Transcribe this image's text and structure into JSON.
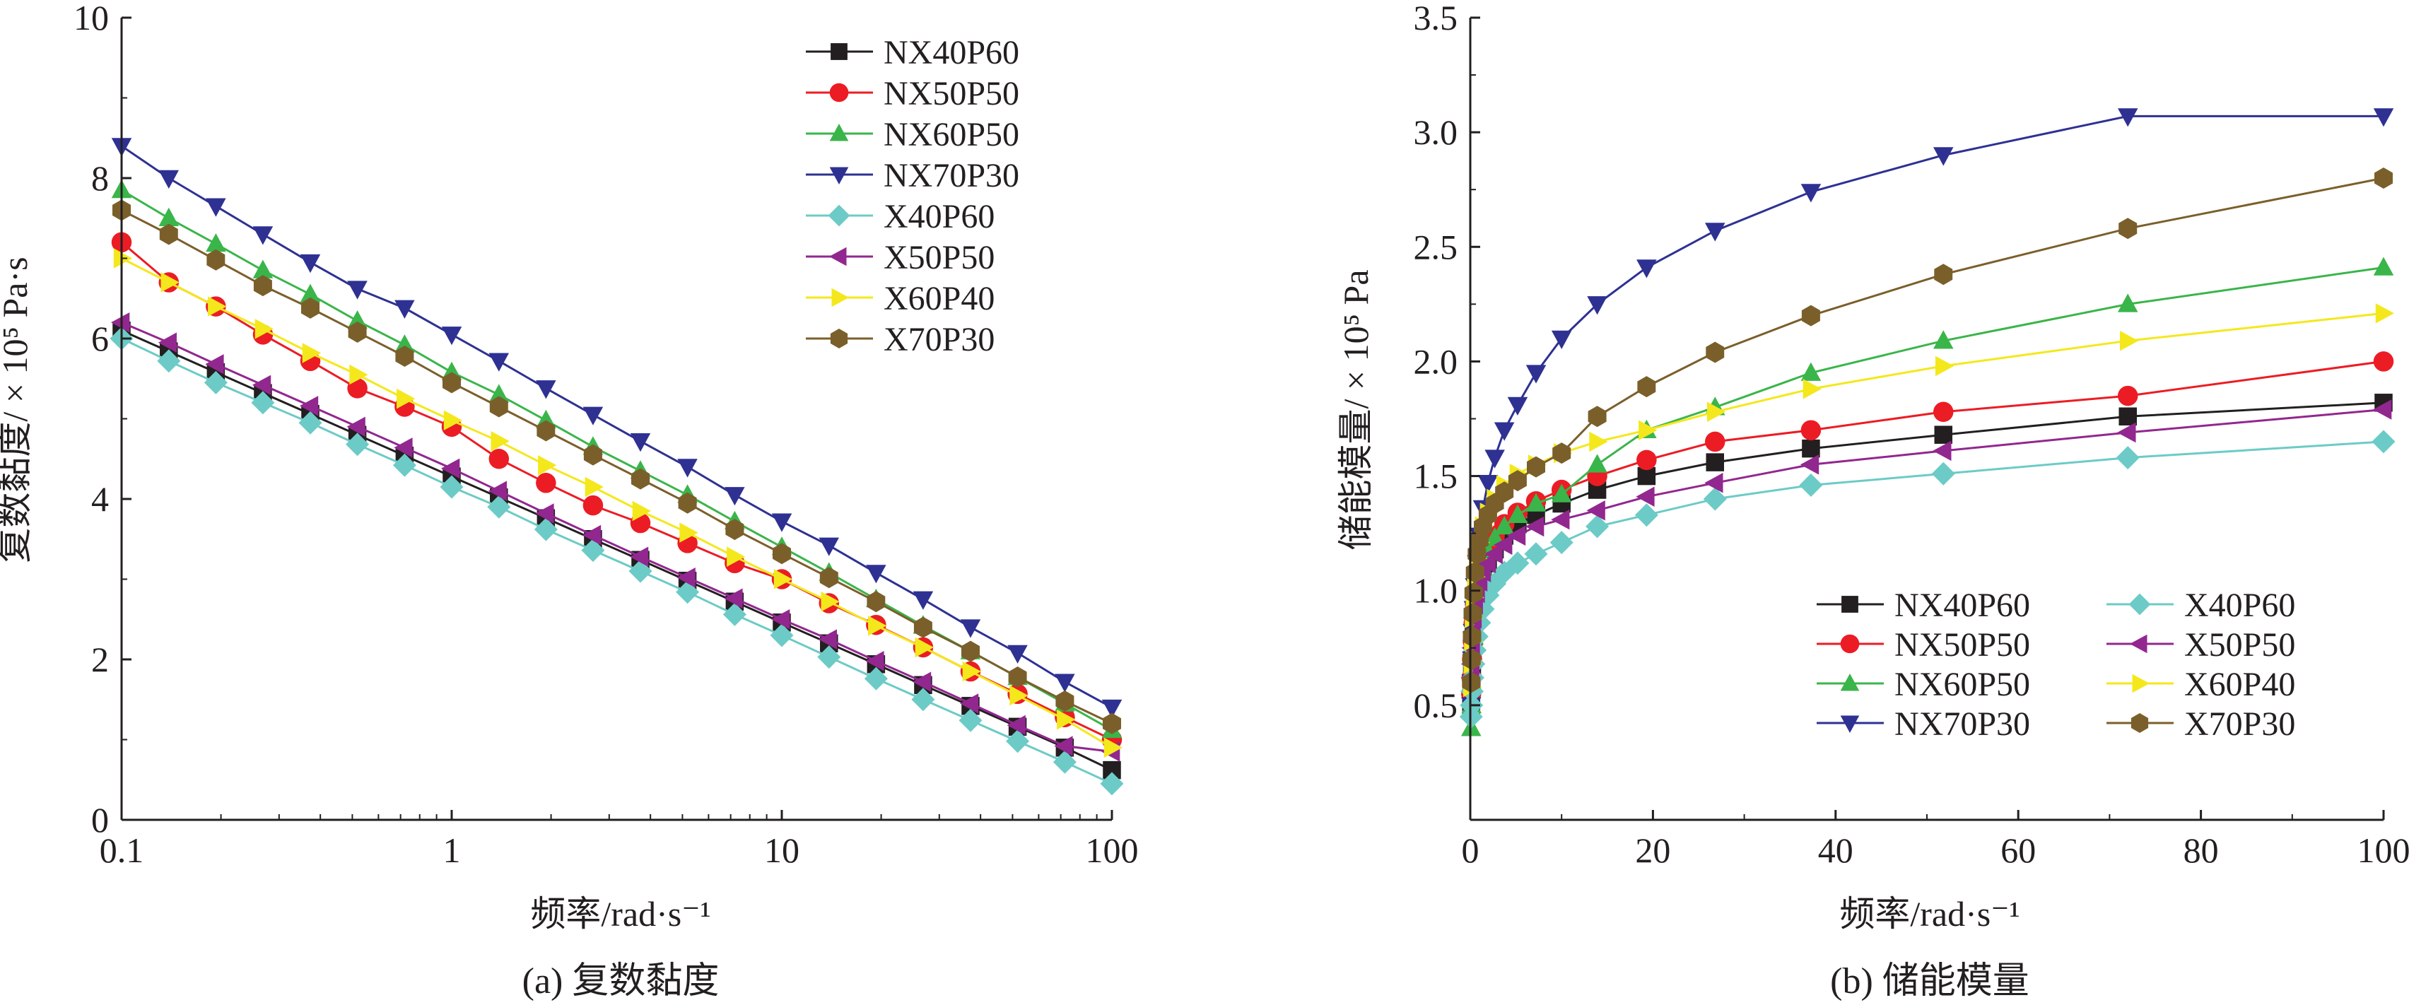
{
  "chart_data": [
    {
      "type": "line",
      "caption": "(a) 复数黏度",
      "xlabel": "频率/rad·s⁻¹",
      "ylabel": "复数黏度/ × 10⁵ Pa·s",
      "xscale": "log",
      "xlim": [
        0.1,
        100
      ],
      "ylim": [
        0,
        10
      ],
      "xticks": [
        "0.1",
        "1",
        "10",
        "100"
      ],
      "yticks": [
        "0",
        "2",
        "4",
        "6",
        "8",
        "10"
      ],
      "legend_position": "top-right",
      "x": [
        0.1,
        0.139,
        0.193,
        0.268,
        0.373,
        0.518,
        0.72,
        1.0,
        1.39,
        1.93,
        2.68,
        3.73,
        5.18,
        7.2,
        10.0,
        13.9,
        19.3,
        26.8,
        37.3,
        51.8,
        72.0,
        100.0
      ],
      "series": [
        {
          "name": "NX40P60",
          "color": "#231f20",
          "marker": "square",
          "values": [
            6.1,
            5.84,
            5.58,
            5.32,
            5.06,
            4.8,
            4.54,
            4.28,
            4.02,
            3.76,
            3.5,
            3.24,
            2.98,
            2.72,
            2.46,
            2.2,
            1.94,
            1.68,
            1.42,
            1.16,
            0.9,
            0.62
          ]
        },
        {
          "name": "NX50P50",
          "color": "#ec1c24",
          "marker": "circle",
          "values": [
            7.2,
            6.7,
            6.4,
            6.05,
            5.72,
            5.38,
            5.15,
            4.9,
            4.5,
            4.2,
            3.92,
            3.7,
            3.45,
            3.2,
            3.0,
            2.7,
            2.43,
            2.15,
            1.85,
            1.57,
            1.28,
            1.0
          ]
        },
        {
          "name": "NX60P50",
          "color": "#3ab54a",
          "marker": "triangle-up",
          "values": [
            7.85,
            7.5,
            7.18,
            6.85,
            6.55,
            6.22,
            5.92,
            5.58,
            5.3,
            4.98,
            4.65,
            4.35,
            4.05,
            3.72,
            3.4,
            3.08,
            2.75,
            2.42,
            2.1,
            1.78,
            1.45,
            1.12
          ]
        },
        {
          "name": "NX70P30",
          "color": "#2e3192",
          "marker": "triangle-down",
          "values": [
            8.4,
            8.0,
            7.65,
            7.3,
            6.95,
            6.62,
            6.38,
            6.05,
            5.72,
            5.38,
            5.05,
            4.72,
            4.4,
            4.05,
            3.72,
            3.42,
            3.08,
            2.75,
            2.4,
            2.08,
            1.72,
            1.4
          ]
        },
        {
          "name": "X40P60",
          "color": "#6ccbc6",
          "marker": "diamond",
          "values": [
            6.0,
            5.72,
            5.45,
            5.2,
            4.95,
            4.68,
            4.42,
            4.15,
            3.9,
            3.62,
            3.36,
            3.1,
            2.84,
            2.56,
            2.3,
            2.03,
            1.76,
            1.5,
            1.24,
            0.98,
            0.72,
            0.45
          ]
        },
        {
          "name": "X50P50",
          "color": "#92278f",
          "marker": "triangle-left",
          "values": [
            6.2,
            5.95,
            5.68,
            5.42,
            5.16,
            4.9,
            4.64,
            4.38,
            4.1,
            3.82,
            3.55,
            3.28,
            3.02,
            2.76,
            2.5,
            2.25,
            1.98,
            1.72,
            1.45,
            1.18,
            0.92,
            0.85
          ]
        },
        {
          "name": "X60P40",
          "color": "#f4e81c",
          "marker": "triangle-right",
          "values": [
            7.0,
            6.7,
            6.4,
            6.12,
            5.82,
            5.55,
            5.25,
            4.98,
            4.72,
            4.42,
            4.15,
            3.85,
            3.58,
            3.28,
            3.0,
            2.72,
            2.42,
            2.15,
            1.85,
            1.55,
            1.25,
            0.9
          ]
        },
        {
          "name": "X70P30",
          "color": "#7b5f2a",
          "marker": "hexagon",
          "values": [
            7.6,
            7.3,
            6.98,
            6.66,
            6.38,
            6.08,
            5.78,
            5.45,
            5.15,
            4.85,
            4.55,
            4.25,
            3.95,
            3.62,
            3.32,
            3.02,
            2.72,
            2.4,
            2.1,
            1.78,
            1.48,
            1.2
          ]
        }
      ]
    },
    {
      "type": "line",
      "caption": "(b) 储能模量",
      "xlabel": "频率/rad·s⁻¹",
      "ylabel": "储能模量/ × 10⁵ Pa",
      "xlim": [
        0,
        100
      ],
      "ylim": [
        0,
        3.5
      ],
      "xticks": [
        "0",
        "20",
        "40",
        "60",
        "80",
        "100"
      ],
      "yticks": [
        "0.5",
        "1.0",
        "1.5",
        "2.0",
        "2.5",
        "3.0",
        "3.5"
      ],
      "legend_position": "lower-right",
      "x": [
        0.1,
        0.139,
        0.193,
        0.268,
        0.373,
        0.518,
        0.72,
        1.0,
        1.39,
        1.93,
        2.68,
        3.73,
        5.18,
        7.2,
        10.0,
        13.9,
        19.3,
        26.8,
        37.3,
        51.8,
        72.0,
        100.0
      ],
      "series": [
        {
          "name": "NX40P60",
          "color": "#231f20",
          "marker": "square",
          "values": [
            0.5,
            0.57,
            0.65,
            0.73,
            0.8,
            0.87,
            0.94,
            1.0,
            1.06,
            1.12,
            1.18,
            1.24,
            1.29,
            1.33,
            1.38,
            1.44,
            1.5,
            1.56,
            1.62,
            1.68,
            1.76,
            1.82
          ]
        },
        {
          "name": "NX50P50",
          "color": "#ec1c24",
          "marker": "circle",
          "values": [
            0.55,
            0.62,
            0.7,
            0.78,
            0.86,
            0.94,
            1.0,
            1.06,
            1.12,
            1.18,
            1.24,
            1.29,
            1.34,
            1.39,
            1.44,
            1.5,
            1.57,
            1.65,
            1.7,
            1.78,
            1.85,
            2.0
          ]
        },
        {
          "name": "NX60P50",
          "color": "#3ab54a",
          "marker": "triangle-up",
          "values": [
            0.4,
            0.5,
            0.6,
            0.7,
            0.8,
            0.88,
            0.96,
            1.03,
            1.1,
            1.17,
            1.23,
            1.28,
            1.33,
            1.38,
            1.42,
            1.55,
            1.7,
            1.8,
            1.95,
            2.09,
            2.25,
            2.41
          ]
        },
        {
          "name": "NX70P30",
          "color": "#2e3192",
          "marker": "triangle-down",
          "values": [
            0.5,
            0.6,
            0.7,
            0.82,
            0.92,
            1.02,
            1.12,
            1.24,
            1.36,
            1.47,
            1.58,
            1.7,
            1.81,
            1.95,
            2.1,
            2.25,
            2.41,
            2.57,
            2.74,
            2.9,
            3.07,
            3.07
          ]
        },
        {
          "name": "X40P60",
          "color": "#6ccbc6",
          "marker": "diamond",
          "values": [
            0.45,
            0.5,
            0.56,
            0.62,
            0.68,
            0.74,
            0.8,
            0.86,
            0.92,
            0.98,
            1.03,
            1.08,
            1.12,
            1.16,
            1.21,
            1.28,
            1.33,
            1.4,
            1.46,
            1.51,
            1.58,
            1.65
          ]
        },
        {
          "name": "X50P50",
          "color": "#92278f",
          "marker": "triangle-left",
          "values": [
            0.62,
            0.68,
            0.75,
            0.82,
            0.88,
            0.94,
            0.99,
            1.04,
            1.08,
            1.12,
            1.16,
            1.2,
            1.24,
            1.28,
            1.31,
            1.35,
            1.41,
            1.47,
            1.55,
            1.61,
            1.69,
            1.79
          ]
        },
        {
          "name": "X60P40",
          "color": "#f4e81c",
          "marker": "triangle-right",
          "values": [
            0.58,
            0.68,
            0.78,
            0.88,
            0.97,
            1.06,
            1.14,
            1.21,
            1.28,
            1.34,
            1.4,
            1.46,
            1.51,
            1.55,
            1.6,
            1.65,
            1.7,
            1.78,
            1.88,
            1.98,
            2.09,
            2.21
          ]
        },
        {
          "name": "X70P30",
          "color": "#7b5f2a",
          "marker": "hexagon",
          "values": [
            0.6,
            0.7,
            0.8,
            0.9,
            0.99,
            1.08,
            1.16,
            1.22,
            1.28,
            1.33,
            1.38,
            1.43,
            1.48,
            1.54,
            1.6,
            1.76,
            1.89,
            2.04,
            2.2,
            2.38,
            2.58,
            2.8
          ]
        }
      ]
    }
  ]
}
